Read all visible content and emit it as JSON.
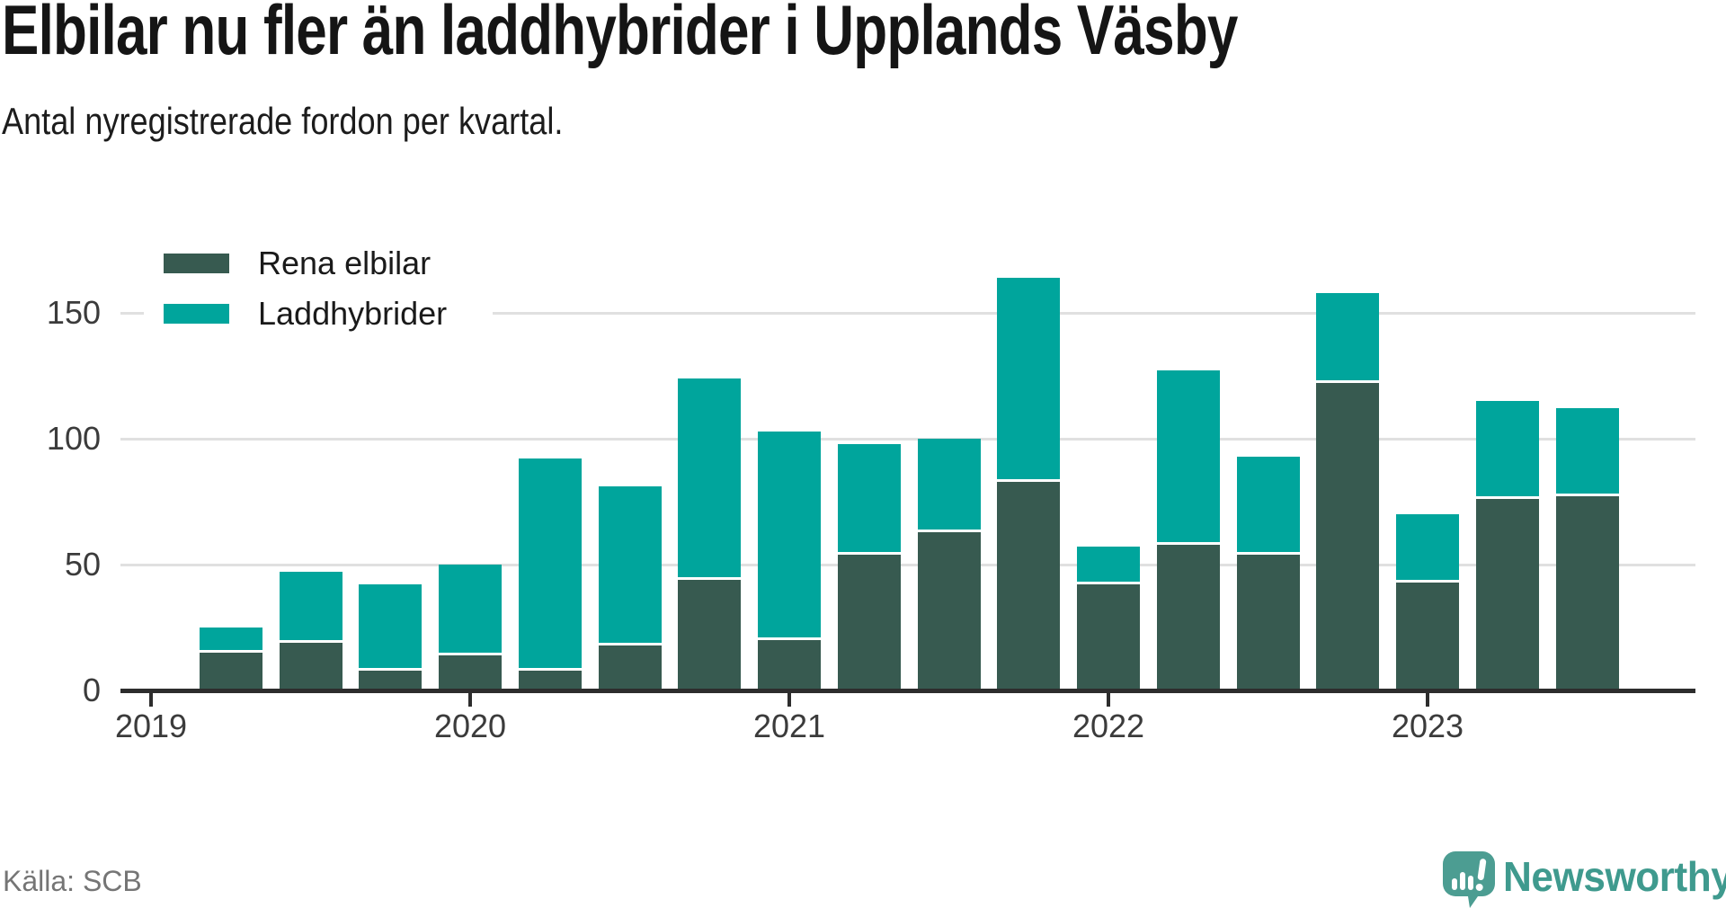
{
  "title": "Elbilar nu fler än laddhybrider i Upplands Väsby",
  "subtitle": "Antal nyregistrerade fordon per kvartal.",
  "source": "Källa: SCB",
  "brand": {
    "name": "Newsworthy",
    "text_color": "#3F9A8E",
    "icon_color": "#4C9D92",
    "icon": "newsworthy-speech-bubble-chart-icon"
  },
  "legend": {
    "items": [
      {
        "label": "Rena elbilar",
        "color": "#375A50"
      },
      {
        "label": "Laddhybrider",
        "color": "#00A59C"
      }
    ]
  },
  "colors": {
    "elbilar": "#375A50",
    "laddhybrider": "#00A59C",
    "gridline": "#e0e0e0",
    "axis": "#2d2d2d",
    "tick_text": "#3b3b3b"
  },
  "chart_data": {
    "type": "bar",
    "stacked": true,
    "title": "Elbilar nu fler än laddhybrider i Upplands Väsby",
    "subtitle": "Antal nyregistrerade fordon per kvartal.",
    "xlabel": "",
    "ylabel": "Antal nyregistrerade fordon",
    "x": [
      "2019 K2",
      "2019 K3",
      "2019 K4",
      "2020 K1",
      "2020 K2",
      "2020 K3",
      "2020 K4",
      "2021 K1",
      "2021 K2",
      "2021 K3",
      "2021 K4",
      "2022 K1",
      "2022 K2",
      "2022 K3",
      "2022 K4",
      "2023 K1",
      "2023 K2",
      "2023 K3"
    ],
    "series": [
      {
        "name": "Rena elbilar",
        "color": "#375A50",
        "values": [
          15,
          19,
          8,
          14,
          8,
          18,
          44,
          20,
          54,
          63,
          83,
          42,
          58,
          54,
          122,
          43,
          76,
          77
        ]
      },
      {
        "name": "Laddhybrider",
        "color": "#00A59C",
        "values": [
          10,
          28,
          34,
          36,
          84,
          63,
          80,
          83,
          44,
          37,
          81,
          15,
          69,
          39,
          36,
          27,
          39,
          35
        ]
      }
    ],
    "stack_totals": [
      25,
      47,
      42,
      50,
      92,
      81,
      124,
      103,
      98,
      100,
      164,
      57,
      127,
      93,
      158,
      70,
      115,
      112
    ],
    "y_ticks": [
      0,
      50,
      100,
      150
    ],
    "year_ticks": [
      "2019",
      "2020",
      "2021",
      "2022",
      "2023"
    ],
    "ylim": [
      0,
      175
    ],
    "grid": "horizontal",
    "legend_position": "top-left"
  }
}
